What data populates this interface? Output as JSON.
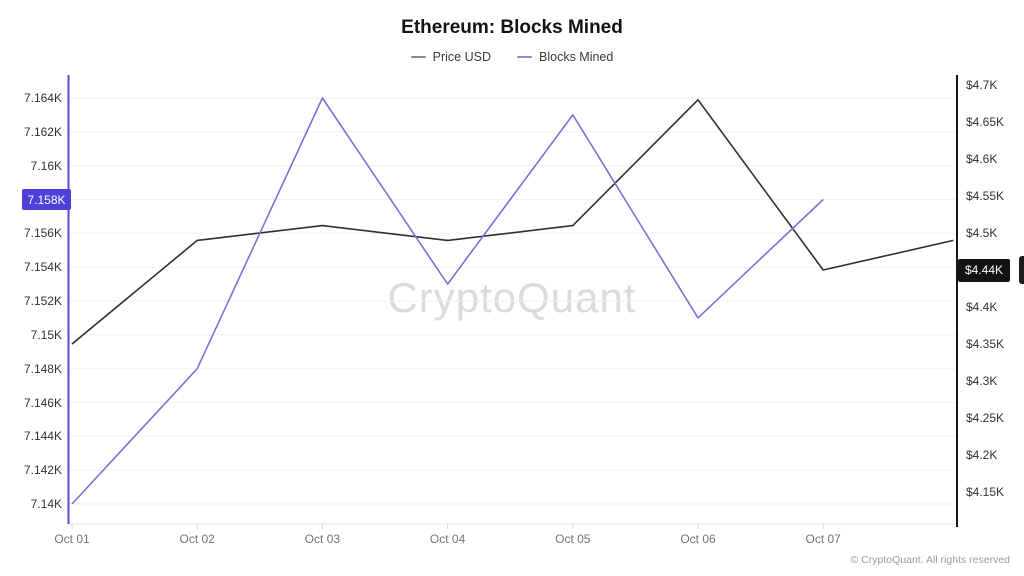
{
  "watermark": "CryptoQuant",
  "footer": {
    "copyright": "© CryptoQuant. All rights reserved"
  },
  "header": {
    "legend": [
      {
        "label": "Price USD",
        "color": "#8a8a8a"
      },
      {
        "label": "Blocks Mined",
        "color": "#8e87e2"
      }
    ]
  },
  "chart_data": {
    "type": "line",
    "title": "Ethereum: Blocks Mined",
    "x_labels": [
      "Oct 01",
      "Oct 02",
      "Oct 03",
      "Oct 04",
      "Oct 05",
      "Oct 06",
      "Oct 07"
    ],
    "grid": true,
    "legend_position": "top",
    "left_axis": {
      "series": "Blocks Mined",
      "unit": "blocks, thousands",
      "min": 7.14,
      "max": 7.164,
      "ticks": [
        {
          "label": "7.164K",
          "value": 7.164
        },
        {
          "label": "7.162K",
          "value": 7.162
        },
        {
          "label": "7.16K",
          "value": 7.16
        },
        {
          "label": "7.158K",
          "value": 7.158
        },
        {
          "label": "7.156K",
          "value": 7.156
        },
        {
          "label": "7.154K",
          "value": 7.154
        },
        {
          "label": "7.152K",
          "value": 7.152
        },
        {
          "label": "7.15K",
          "value": 7.15
        },
        {
          "label": "7.148K",
          "value": 7.148
        },
        {
          "label": "7.146K",
          "value": 7.146
        },
        {
          "label": "7.144K",
          "value": 7.144
        },
        {
          "label": "7.142K",
          "value": 7.142
        },
        {
          "label": "7.14K",
          "value": 7.14
        }
      ],
      "badge": {
        "label": "7.158K",
        "anchor": 7.158,
        "bg": "#4d41d9",
        "fg": "#ffffff"
      }
    },
    "right_axis": {
      "series": "Price USD",
      "unit": "USD, thousands",
      "min": 4.15,
      "max": 4.7,
      "ticks": [
        {
          "label": "$4.7K",
          "value": 4.7
        },
        {
          "label": "$4.65K",
          "value": 4.65
        },
        {
          "label": "$4.6K",
          "value": 4.6
        },
        {
          "label": "$4.55K",
          "value": 4.55
        },
        {
          "label": "$4.5K",
          "value": 4.5
        },
        {
          "label": "$4.4K",
          "value": 4.4
        },
        {
          "label": "$4.35K",
          "value": 4.35
        },
        {
          "label": "$4.3K",
          "value": 4.3
        },
        {
          "label": "$4.25K",
          "value": 4.25
        },
        {
          "label": "$4.2K",
          "value": 4.2
        },
        {
          "label": "$4.15K",
          "value": 4.15
        }
      ],
      "badge": {
        "label": "$4.44K",
        "anchor": 4.45,
        "bg": "#131313",
        "fg": "#ffffff"
      }
    },
    "series": [
      {
        "name": "Price USD",
        "axis": "right",
        "color": "#2f2f2f",
        "x": [
          0,
          1,
          2,
          3,
          4,
          5,
          6,
          7.04
        ],
        "values": [
          4.35,
          4.49,
          4.51,
          4.49,
          4.51,
          4.68,
          4.45,
          4.49
        ]
      },
      {
        "name": "Blocks Mined",
        "axis": "left",
        "color": "#7a71d8",
        "x": [
          0,
          1,
          2,
          3,
          4,
          5,
          6
        ],
        "values": [
          7.14,
          7.148,
          7.164,
          7.153,
          7.163,
          7.151,
          7.158
        ]
      }
    ]
  }
}
